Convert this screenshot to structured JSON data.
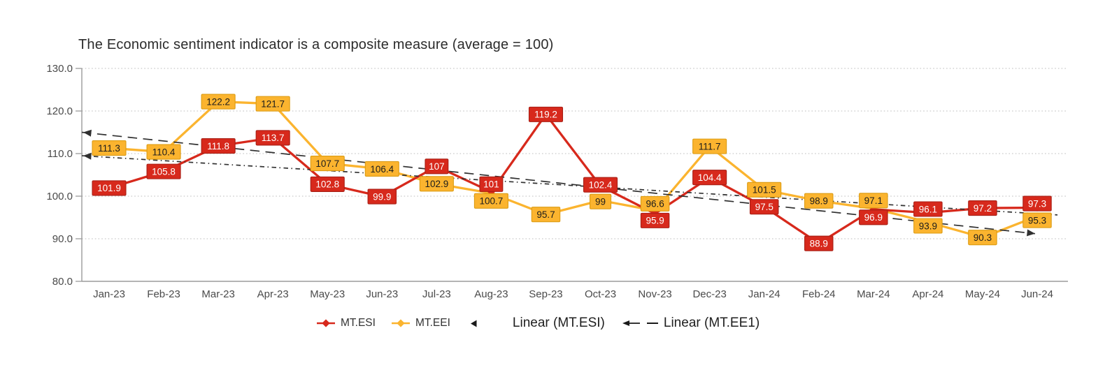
{
  "title": "The Economic sentiment indicator is a composite measure (average = 100)",
  "legend": {
    "esi_label": "MT.ESI",
    "eei_label": "MT.EEI",
    "linear_esi_label": "Linear (MT.ESI)",
    "linear_ee1_label": "Linear (MT.EE1)"
  },
  "colors": {
    "esi": "#d7291c",
    "esi_border": "#a81f15",
    "esi_label_text": "#ffffff",
    "eei": "#fbb42f",
    "eei_border": "#dc9c13",
    "eei_label_text": "#1c1c1c",
    "trend": "#303030",
    "axis": "#9b9b9b",
    "grid": "#c9c9c9",
    "tick_text": "#4a4a4a"
  },
  "chart_data": {
    "type": "line",
    "title": "The Economic sentiment indicator is a composite measure (average = 100)",
    "categories": [
      "Jan-23",
      "Feb-23",
      "Mar-23",
      "Apr-23",
      "May-23",
      "Jun-23",
      "Jul-23",
      "Aug-23",
      "Sep-23",
      "Oct-23",
      "Nov-23",
      "Dec-23",
      "Jan-24",
      "Feb-24",
      "Mar-24",
      "Apr-24",
      "May-24",
      "Jun-24"
    ],
    "series": [
      {
        "name": "MT.ESI",
        "color_key": "esi",
        "values": [
          101.9,
          105.8,
          111.8,
          113.7,
          102.8,
          99.9,
          107,
          101,
          119.2,
          102.4,
          95.9,
          104.4,
          97.5,
          88.9,
          96.9,
          96.1,
          97.2,
          97.3
        ],
        "labels": [
          "101.9",
          "105.8",
          "111.8",
          "113.7",
          "102.8",
          "99.9",
          "107",
          "101",
          "119.2",
          "102.4",
          "95.9",
          "104.4",
          "97.5",
          "88.9",
          "96.9",
          "96.1",
          "97.2",
          "97.3"
        ]
      },
      {
        "name": "MT.EEI",
        "color_key": "eei",
        "values": [
          111.3,
          110.4,
          122.2,
          121.7,
          107.7,
          106.4,
          102.9,
          100.7,
          95.7,
          99,
          96.6,
          111.7,
          101.5,
          98.9,
          97.1,
          93.9,
          90.3,
          95.3
        ],
        "labels": [
          "111.3",
          "110.4",
          "122.2",
          "121.7",
          "107.7",
          "106.4",
          "102.9",
          "100.7",
          "95.7",
          "99",
          "96.6",
          "111.7",
          "101.5",
          "98.9",
          "97.1",
          "93.9",
          "90.3",
          "95.3"
        ]
      }
    ],
    "trendlines": [
      {
        "name": "Linear (MT.ESI)",
        "start_value": 109.5,
        "end_value": 95.6,
        "style": "dash-dot",
        "arrows": "start"
      },
      {
        "name": "Linear (MT.EE1)",
        "start_value": 115.0,
        "end_value": 91.2,
        "style": "long-dash",
        "arrows": "both"
      }
    ],
    "y_axis": {
      "min": 80,
      "max": 130,
      "step": 10,
      "tick_labels": [
        "80.0",
        "90.0",
        "100.0",
        "110.0",
        "120.0",
        "130.0"
      ]
    },
    "x_axis": {
      "tick_labels": [
        "Jan-23",
        "Feb-23",
        "Mar-23",
        "Apr-23",
        "May-23",
        "Jun-23",
        "Jul-23",
        "Aug-23",
        "Sep-23",
        "Oct-23",
        "Nov-23",
        "Dec-23",
        "Jan-24",
        "Feb-24",
        "Mar-24",
        "Apr-24",
        "May-24",
        "Jun-24"
      ]
    },
    "legend_position": "bottom",
    "grid": "horizontal-dotted"
  }
}
